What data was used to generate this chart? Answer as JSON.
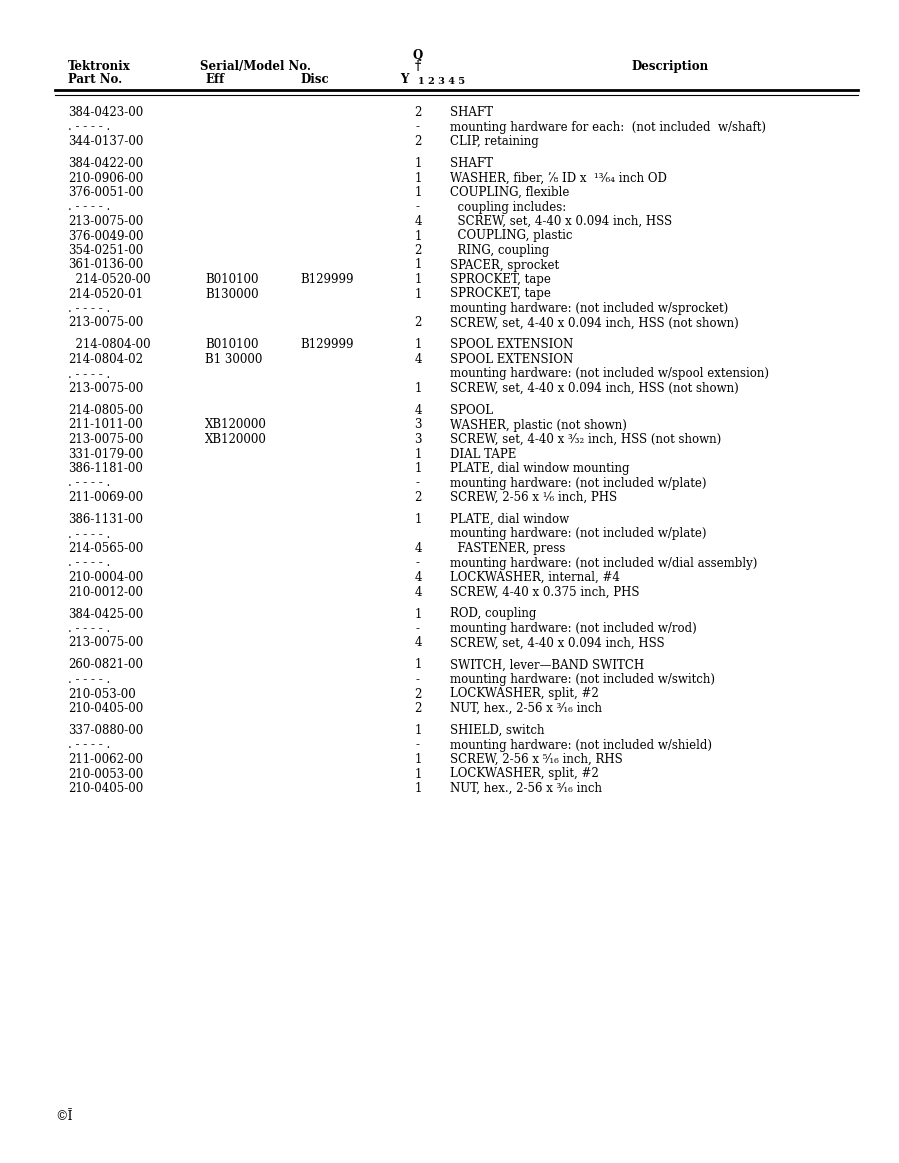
{
  "bg_color": "#ffffff",
  "rows": [
    {
      "part": "384-0423-00",
      "eff": "",
      "disc": "",
      "qty": "2",
      "desc": "SHAFT",
      "blank": false
    },
    {
      "part": ". - - - - .",
      "eff": "",
      "disc": "",
      "qty": "-",
      "desc": "mounting hardware for each:  (not included  w/shaft)",
      "blank": false,
      "dots": true
    },
    {
      "part": "344-0137-00",
      "eff": "",
      "disc": "",
      "qty": "2",
      "desc": "CLIP, retaining",
      "blank": false
    },
    {
      "part": "",
      "eff": "",
      "disc": "",
      "qty": "",
      "desc": "",
      "blank": true
    },
    {
      "part": "384-0422-00",
      "eff": "",
      "disc": "",
      "qty": "1",
      "desc": "SHAFT",
      "blank": false
    },
    {
      "part": "210-0906-00",
      "eff": "",
      "disc": "",
      "qty": "1",
      "desc": "WASHER, fiber, ’⁄₈ ID x  ¹³⁄₆₄ inch OD",
      "blank": false
    },
    {
      "part": "376-0051-00",
      "eff": "",
      "disc": "",
      "qty": "1",
      "desc": "COUPLING, flexible",
      "blank": false
    },
    {
      "part": ". - - - - .",
      "eff": "",
      "disc": "",
      "qty": "-",
      "desc": "  coupling includes:",
      "blank": false,
      "dots": true
    },
    {
      "part": "213-0075-00",
      "eff": "",
      "disc": "",
      "qty": "4",
      "desc": "  SCREW, set, 4-40 x 0.094 inch, HSS",
      "blank": false
    },
    {
      "part": "376-0049-00",
      "eff": "",
      "disc": "",
      "qty": "1",
      "desc": "  COUPLING, plastic",
      "blank": false
    },
    {
      "part": "354-0251-00",
      "eff": "",
      "disc": "",
      "qty": "2",
      "desc": "  RING, coupling",
      "blank": false
    },
    {
      "part": "361-0136-00",
      "eff": "",
      "disc": "",
      "qty": "1",
      "desc": "SPACER, sprocket",
      "blank": false
    },
    {
      "part": "  214-0520-00",
      "eff": "B010100",
      "disc": "B129999",
      "qty": "1",
      "desc": "SPROCKET, tape",
      "blank": false
    },
    {
      "part": "214-0520-01",
      "eff": "B130000",
      "disc": "",
      "qty": "1",
      "desc": "SPROCKET, tape",
      "blank": false
    },
    {
      "part": ". - - - - .",
      "eff": "",
      "disc": "",
      "qty": "",
      "desc": "mounting hardware: (not included w/sprocket)",
      "blank": false,
      "dots": true
    },
    {
      "part": "213-0075-00",
      "eff": "",
      "disc": "",
      "qty": "2",
      "desc": "SCREW, set, 4-40 x 0.094 inch, HSS (not shown)",
      "blank": false
    },
    {
      "part": "",
      "eff": "",
      "disc": "",
      "qty": "",
      "desc": "",
      "blank": true
    },
    {
      "part": "  214-0804-00",
      "eff": "B010100",
      "disc": "B129999",
      "qty": "1",
      "desc": "SPOOL EXTENSION",
      "blank": false
    },
    {
      "part": "214-0804-02",
      "eff": "B1 30000",
      "disc": "",
      "qty": "4",
      "desc": "SPOOL EXTENSION",
      "blank": false
    },
    {
      "part": ". - - - - .",
      "eff": "",
      "disc": "",
      "qty": "",
      "desc": "mounting hardware: (not included w/spool extension)",
      "blank": false,
      "dots": true
    },
    {
      "part": "213-0075-00",
      "eff": "",
      "disc": "",
      "qty": "1",
      "desc": "SCREW, set, 4-40 x 0.094 inch, HSS (not shown)",
      "blank": false
    },
    {
      "part": "",
      "eff": "",
      "disc": "",
      "qty": "",
      "desc": "",
      "blank": true
    },
    {
      "part": "214-0805-00",
      "eff": "",
      "disc": "",
      "qty": "4",
      "desc": "SPOOL",
      "blank": false
    },
    {
      "part": "211-1011-00",
      "eff": "XB120000",
      "disc": "",
      "qty": "3",
      "desc": "WASHER, plastic (not shown)",
      "blank": false
    },
    {
      "part": "213-0075-00",
      "eff": "XB120000",
      "disc": "",
      "qty": "3",
      "desc": "SCREW, set, 4-40 x ³⁄₃₂ inch, HSS (not shown)",
      "blank": false
    },
    {
      "part": "331-0179-00",
      "eff": "",
      "disc": "",
      "qty": "1",
      "desc": "DIAL TAPE",
      "blank": false
    },
    {
      "part": "386-1181-00",
      "eff": "",
      "disc": "",
      "qty": "1",
      "desc": "PLATE, dial window mounting",
      "blank": false
    },
    {
      "part": ". - - - - .",
      "eff": "",
      "disc": "",
      "qty": "-",
      "desc": "mounting hardware: (not included w/plate)",
      "blank": false,
      "dots": true
    },
    {
      "part": "211-0069-00",
      "eff": "",
      "disc": "",
      "qty": "2",
      "desc": "SCREW, 2-56 x ¹⁄₆ inch, PHS",
      "blank": false
    },
    {
      "part": "",
      "eff": "",
      "disc": "",
      "qty": "",
      "desc": "",
      "blank": true
    },
    {
      "part": "386-1131-00",
      "eff": "",
      "disc": "",
      "qty": "1",
      "desc": "PLATE, dial window",
      "blank": false
    },
    {
      "part": ". - - - - .",
      "eff": "",
      "disc": "",
      "qty": "",
      "desc": "mounting hardware: (not included w/plate)",
      "blank": false,
      "dots": true
    },
    {
      "part": "214-0565-00",
      "eff": "",
      "disc": "",
      "qty": "4",
      "desc": "  FASTENER, press",
      "blank": false
    },
    {
      "part": ". - - - - .",
      "eff": "",
      "disc": "",
      "qty": "-",
      "desc": "mounting hardware: (not included w/dial assembly)",
      "blank": false,
      "dots": true
    },
    {
      "part": "210-0004-00",
      "eff": "",
      "disc": "",
      "qty": "4",
      "desc": "LOCKWASHER, internal, #4",
      "blank": false
    },
    {
      "part": "210-0012-00",
      "eff": "",
      "disc": "",
      "qty": "4",
      "desc": "SCREW, 4-40 x 0.375 inch, PHS",
      "blank": false
    },
    {
      "part": "",
      "eff": "",
      "disc": "",
      "qty": "",
      "desc": "",
      "blank": true
    },
    {
      "part": "384-0425-00",
      "eff": "",
      "disc": "",
      "qty": "1",
      "desc": "ROD, coupling",
      "blank": false
    },
    {
      "part": ". - - - - .",
      "eff": "",
      "disc": "",
      "qty": "-",
      "desc": "mounting hardware: (not included w/rod)",
      "blank": false,
      "dots": true
    },
    {
      "part": "213-0075-00",
      "eff": "",
      "disc": "",
      "qty": "4",
      "desc": "SCREW, set, 4-40 x 0.094 inch, HSS",
      "blank": false
    },
    {
      "part": "",
      "eff": "",
      "disc": "",
      "qty": "",
      "desc": "",
      "blank": true
    },
    {
      "part": "260-0821-00",
      "eff": "",
      "disc": "",
      "qty": "1",
      "desc": "SWITCH, lever—BAND SWITCH",
      "blank": false
    },
    {
      "part": ". - - - - .",
      "eff": "",
      "disc": "",
      "qty": "-",
      "desc": "mounting hardware: (not included w/switch)",
      "blank": false,
      "dots": true
    },
    {
      "part": "210-053-00",
      "eff": "",
      "disc": "",
      "qty": "2",
      "desc": "LOCKWASHER, split, #2",
      "blank": false
    },
    {
      "part": "210-0405-00",
      "eff": "",
      "disc": "",
      "qty": "2",
      "desc": "NUT, hex., 2-56 x ³⁄₁₆ inch",
      "blank": false
    },
    {
      "part": "",
      "eff": "",
      "disc": "",
      "qty": "",
      "desc": "",
      "blank": true
    },
    {
      "part": "337-0880-00",
      "eff": "",
      "disc": "",
      "qty": "1",
      "desc": "SHIELD, switch",
      "blank": false
    },
    {
      "part": ". - - - - .",
      "eff": "",
      "disc": "",
      "qty": "-",
      "desc": "mounting hardware: (not included w/shield)",
      "blank": false,
      "dots": true
    },
    {
      "part": "211-0062-00",
      "eff": "",
      "disc": "",
      "qty": "1",
      "desc": "SCREW, 2-56 x ⁵⁄₁₆ inch, RHS",
      "blank": false
    },
    {
      "part": "210-0053-00",
      "eff": "",
      "disc": "",
      "qty": "1",
      "desc": "LOCKWASHER, split, #2",
      "blank": false
    },
    {
      "part": "210-0405-00",
      "eff": "",
      "disc": "",
      "qty": "1",
      "desc": "NUT, hex., 2-56 x ³⁄₁₆ inch",
      "blank": false
    }
  ]
}
